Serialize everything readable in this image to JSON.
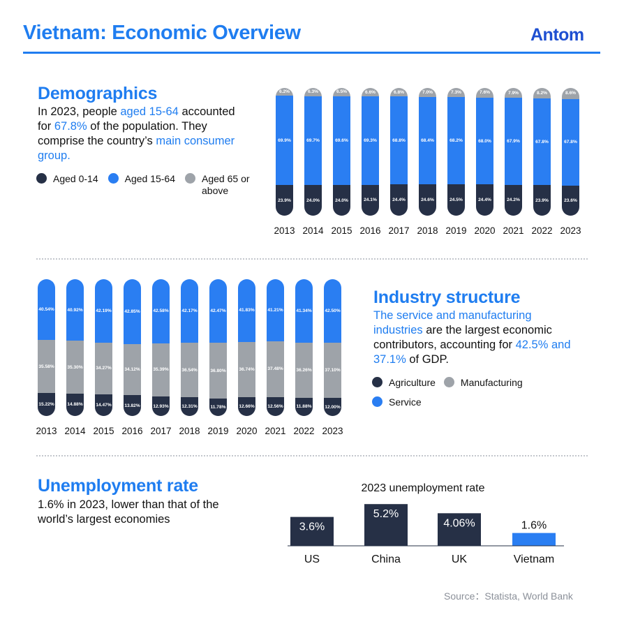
{
  "header": {
    "title": "Vietnam: Economic Overview",
    "logo": "Antom"
  },
  "colors": {
    "dark": "#263046",
    "blue": "#2a7ef2",
    "gray": "#9ea3a9",
    "accent": "#1f7df0"
  },
  "demographics": {
    "heading": "Demographics",
    "text": [
      {
        "t": "In 2023, people ",
        "hl": false
      },
      {
        "t": "aged 15-64",
        "hl": true
      },
      {
        "t": " accounted for ",
        "hl": false
      },
      {
        "t": "67.8%",
        "hl": true
      },
      {
        "t": " of the population. They comprise the country’s ",
        "hl": false
      },
      {
        "t": "main consumer group.",
        "hl": true
      }
    ],
    "legend": [
      {
        "label": "Aged 0-14",
        "color": "#263046"
      },
      {
        "label": "Aged 15-64",
        "color": "#2a7ef2"
      },
      {
        "label": "Aged 65 or above",
        "color": "#9ea3a9"
      }
    ]
  },
  "industry": {
    "heading": "Industry structure",
    "text": [
      {
        "t": "The service and manufacturing industries",
        "hl": true
      },
      {
        "t": " are the largest economic contributors, accounting for ",
        "hl": false
      },
      {
        "t": "42.5% and 37.1%",
        "hl": true
      },
      {
        "t": " of GDP.",
        "hl": false
      }
    ],
    "legend": [
      {
        "label": "Agriculture",
        "color": "#263046"
      },
      {
        "label": "Manufacturing",
        "color": "#9ea3a9"
      },
      {
        "label": "Service",
        "color": "#2a7ef2"
      }
    ]
  },
  "unemployment": {
    "heading": "Unemployment rate",
    "text": "1.6% in 2023, lower than that of the world’s largest economies"
  },
  "source": "Source：Statista, World Bank",
  "chart_data": [
    {
      "type": "bar",
      "stacked": true,
      "orientation": "vertical",
      "categories": [
        "2013",
        "2014",
        "2015",
        "2016",
        "2017",
        "2018",
        "2019",
        "2020",
        "2021",
        "2022",
        "2023"
      ],
      "series": [
        {
          "name": "Aged 65 or above",
          "labels": [
            "6.2%",
            "6.3%",
            "6.5%",
            "6.6%",
            "6.8%",
            "7.0%",
            "7.3%",
            "7.6%",
            "7.9%",
            "8.2%",
            "8.6%"
          ],
          "values": [
            6.2,
            6.3,
            6.5,
            6.6,
            6.8,
            7.0,
            7.3,
            7.6,
            7.9,
            8.2,
            8.6
          ]
        },
        {
          "name": "Aged 15-64",
          "labels": [
            "69.9%",
            "69.7%",
            "69.6%",
            "69.3%",
            "68.8%",
            "68.4%",
            "68.2%",
            "68.0%",
            "67.9%",
            "67.8%",
            "67.8%"
          ],
          "values": [
            69.9,
            69.7,
            69.6,
            69.3,
            68.8,
            68.4,
            68.2,
            68.0,
            67.9,
            67.8,
            67.8
          ]
        },
        {
          "name": "Aged 0-14",
          "labels": [
            "23.9%",
            "24.0%",
            "24.0%",
            "24.1%",
            "24.4%",
            "24.6%",
            "24.5%",
            "24.4%",
            "24.2%",
            "23.9%",
            "23.6%"
          ],
          "values": [
            23.9,
            24.0,
            24.0,
            24.1,
            24.4,
            24.6,
            24.5,
            24.4,
            24.2,
            23.9,
            23.6
          ]
        }
      ],
      "title": "",
      "xlabel": "",
      "ylabel": "",
      "ylim": [
        0,
        100
      ],
      "grid": false,
      "legend": "left"
    },
    {
      "type": "bar",
      "stacked": true,
      "orientation": "vertical",
      "categories": [
        "2013",
        "2014",
        "2015",
        "2016",
        "2017",
        "2018",
        "2019",
        "2020",
        "2021",
        "2022",
        "2023"
      ],
      "series": [
        {
          "name": "Service",
          "labels": [
            "40.54%",
            "40.92%",
            "42.19%",
            "42.85%",
            "42.58%",
            "42.17%",
            "42.47%",
            "41.83%",
            "41.21%",
            "41.34%",
            "42.50%"
          ],
          "values": [
            40.54,
            40.92,
            42.19,
            42.85,
            42.58,
            42.17,
            42.47,
            41.83,
            41.21,
            41.34,
            42.5
          ]
        },
        {
          "name": "Manufacturing",
          "labels": [
            "35.58%",
            "35.30%",
            "34.27%",
            "34.12%",
            "35.39%",
            "36.54%",
            "36.80%",
            "36.74%",
            "37.48%",
            "36.26%",
            "37.10%"
          ],
          "values": [
            35.58,
            35.3,
            34.27,
            34.12,
            35.39,
            36.54,
            36.8,
            36.74,
            37.48,
            36.26,
            37.1
          ]
        },
        {
          "name": "Agriculture",
          "labels": [
            "15.22%",
            "14.88%",
            "14.47%",
            "13.82%",
            "12.93%",
            "12.31%",
            "11.78%",
            "12.66%",
            "12.56%",
            "11.88%",
            "12.00%"
          ],
          "values": [
            15.22,
            14.88,
            14.47,
            13.82,
            12.93,
            12.31,
            11.78,
            12.66,
            12.56,
            11.88,
            12.0
          ]
        }
      ],
      "title": "",
      "xlabel": "",
      "ylabel": "",
      "grid": false,
      "legend": "right"
    },
    {
      "type": "bar",
      "title": "2023 unemployment rate",
      "categories": [
        "US",
        "China",
        "UK",
        "Vietnam"
      ],
      "values": [
        3.6,
        5.2,
        4.06,
        1.6
      ],
      "labels": [
        "3.6%",
        "5.2%",
        "4.06%",
        "1.6%"
      ],
      "colors": [
        "#263046",
        "#263046",
        "#263046",
        "#2a7ef2"
      ],
      "xlabel": "",
      "ylabel": "",
      "grid": false
    }
  ]
}
